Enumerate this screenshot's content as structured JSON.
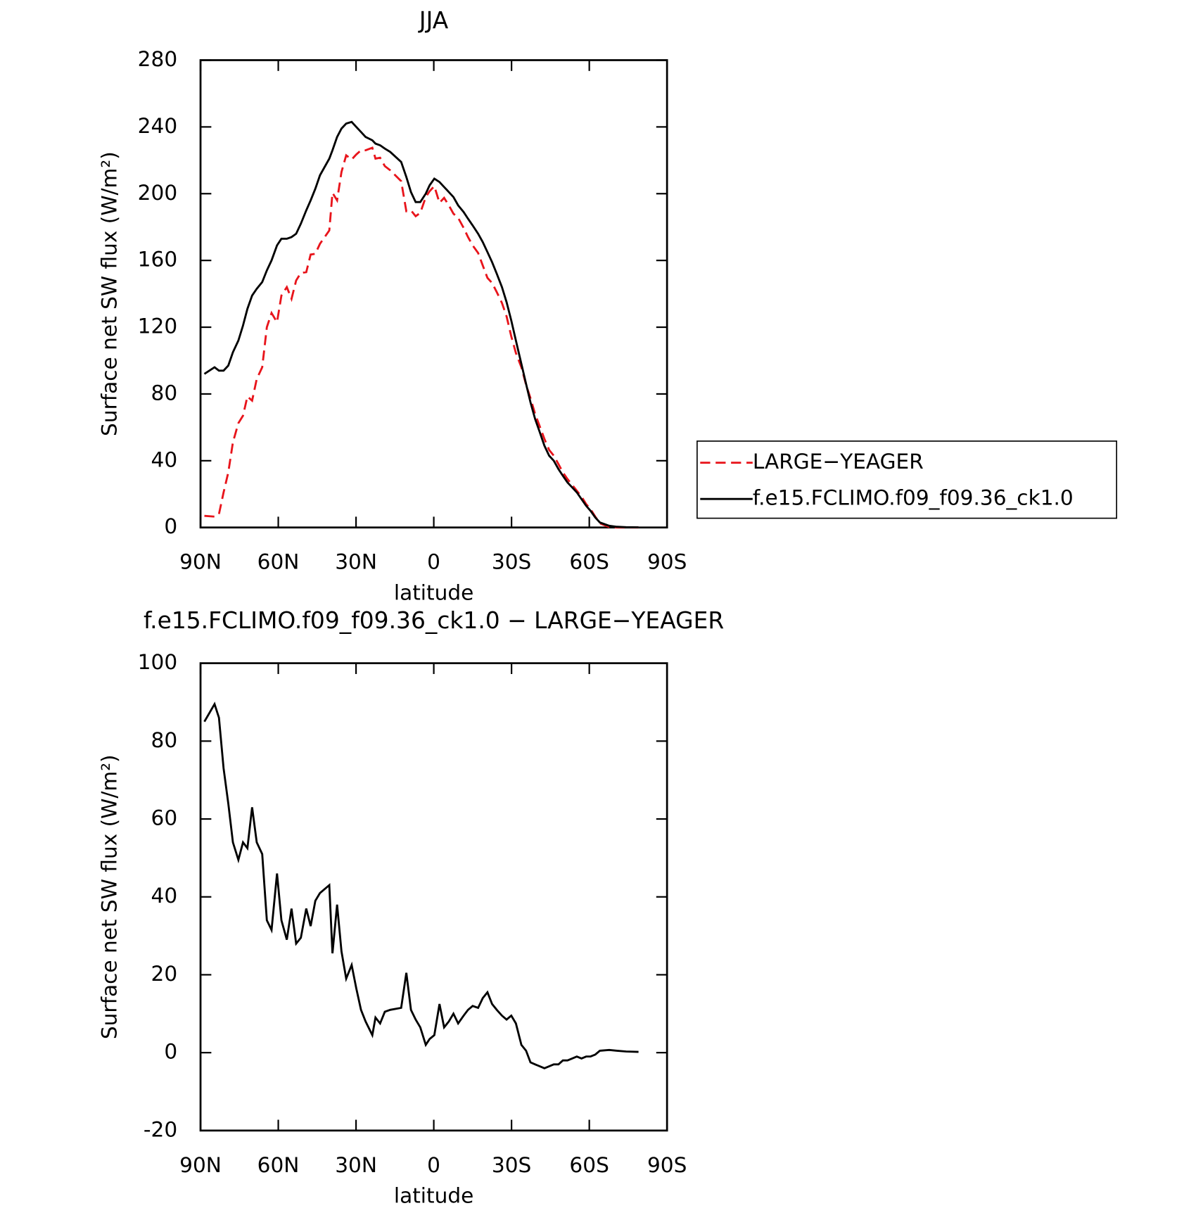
{
  "chart_data": [
    {
      "type": "line",
      "title": "JJA",
      "xlabel": "latitude",
      "ylabel": "Surface net SW flux (W/m²)",
      "x": [
        88.5,
        84.6,
        82.9,
        81.1,
        79.3,
        77.5,
        75.4,
        73.6,
        71.9,
        70.1,
        68.3,
        66.2,
        64.4,
        62.6,
        60.5,
        58.8,
        56.7,
        54.9,
        53.1,
        51.3,
        49.2,
        47.5,
        45.7,
        43.9,
        40.3,
        39.1,
        37.3,
        35.6,
        33.8,
        31.7,
        29.9,
        28.1,
        26.3,
        23.7,
        22.5,
        20.7,
        18.9,
        16.8,
        12.6,
        10.6,
        8.8,
        7.0,
        5.2,
        3.1,
        1.6,
        -0.2,
        -2.2,
        -4.0,
        -5.8,
        -7.6,
        -9.4,
        -11.5,
        -13.2,
        -15.0,
        -17.1,
        -18.9,
        -20.7,
        -22.5,
        -24.3,
        -26.3,
        -28.1,
        -29.9,
        -31.7,
        -33.8,
        -35.6,
        -37.3,
        -39.1,
        -40.9,
        -42.7,
        -44.5,
        -46.3,
        -48.1,
        -49.8,
        -51.6,
        -53.4,
        -55.2,
        -57.0,
        -58.8,
        -60.5,
        -62.3,
        -64.1,
        -67.7,
        -70.7,
        -74.2,
        -79.0
      ],
      "series": [
        {
          "name": "LARGE−YEAGER",
          "color": "#e8141b",
          "dash": true,
          "values": [
            7,
            6.5,
            8,
            21,
            33,
            51,
            62.5,
            67,
            78.5,
            76,
            89,
            96,
            120,
            128.5,
            123,
            139,
            144,
            137,
            148,
            152.5,
            153,
            163.5,
            164,
            170,
            178,
            200.5,
            196,
            213,
            223,
            220.5,
            223.5,
            226,
            226,
            227.5,
            221,
            221.5,
            216.5,
            214,
            207.5,
            189.5,
            190,
            186.5,
            188.5,
            198,
            201.5,
            204.5,
            194.5,
            197.5,
            193,
            188,
            185.5,
            179.5,
            174,
            169,
            164.5,
            157,
            149.5,
            146.5,
            141,
            134.5,
            126.5,
            114.5,
            104.5,
            96,
            85.5,
            77.5,
            68,
            60.5,
            53,
            46.5,
            43,
            38,
            33,
            29,
            25.5,
            22,
            18.5,
            14,
            11,
            6.5,
            2.5,
            0.3,
            0,
            0,
            0
          ]
        },
        {
          "name": "f.e15.FCLIMO.f09_f09.36_ck1.0",
          "color": "#000000",
          "dash": false,
          "values": [
            92,
            96,
            94,
            94,
            97,
            105,
            112,
            121,
            131,
            139,
            143,
            147,
            154,
            160,
            169,
            173,
            173,
            174,
            176,
            182,
            190,
            196,
            203,
            211,
            221,
            226,
            234,
            239,
            242,
            243,
            240,
            237,
            234,
            232,
            230,
            229,
            227,
            225,
            219,
            210,
            201,
            195,
            195,
            200,
            205,
            209,
            207,
            204,
            201,
            198,
            193,
            189,
            185,
            181,
            176,
            171,
            165,
            159,
            152,
            144,
            135,
            124,
            112,
            98,
            86,
            75,
            65,
            57,
            49,
            43,
            40,
            35,
            31,
            27,
            24,
            21,
            17,
            13,
            10,
            6,
            3,
            1,
            0.4,
            0.2,
            0.1
          ]
        }
      ],
      "xlim": [
        90,
        -90
      ],
      "ylim": [
        0,
        280
      ],
      "xticks": [
        {
          "value": 90,
          "label": "90N"
        },
        {
          "value": 60,
          "label": "60N"
        },
        {
          "value": 30,
          "label": "30N"
        },
        0,
        {
          "value": -30,
          "label": "30S"
        },
        {
          "value": -60,
          "label": "60S"
        },
        {
          "value": -90,
          "label": "90S"
        }
      ],
      "yticks": [
        0,
        40,
        80,
        120,
        160,
        200,
        240,
        280
      ],
      "legend": "outside right"
    },
    {
      "type": "line",
      "title": "f.e15.FCLIMO.f09_f09.36_ck1.0 − LARGE−YEAGER",
      "xlabel": "latitude",
      "ylabel": "Surface net SW flux (W/m²)",
      "x": [
        88.5,
        84.6,
        82.9,
        81.1,
        79.3,
        77.5,
        75.4,
        73.6,
        71.9,
        70.1,
        68.3,
        66.2,
        64.4,
        62.6,
        60.5,
        58.8,
        56.7,
        54.9,
        53.1,
        51.3,
        49.2,
        47.5,
        45.7,
        43.9,
        40.3,
        39.1,
        37.3,
        35.6,
        33.8,
        31.7,
        29.9,
        28.1,
        26.3,
        23.7,
        22.5,
        20.7,
        18.9,
        16.8,
        12.6,
        10.6,
        8.8,
        7.0,
        5.2,
        3.1,
        1.6,
        -0.2,
        -2.2,
        -4.0,
        -5.8,
        -7.6,
        -9.4,
        -11.5,
        -13.2,
        -15.0,
        -17.1,
        -18.9,
        -20.7,
        -22.5,
        -24.3,
        -26.3,
        -28.1,
        -29.9,
        -31.7,
        -33.8,
        -35.6,
        -37.3,
        -39.1,
        -40.9,
        -42.7,
        -44.5,
        -46.3,
        -48.1,
        -49.8,
        -51.6,
        -53.4,
        -55.2,
        -57.0,
        -58.8,
        -60.5,
        -62.3,
        -64.1,
        -67.7,
        -70.7,
        -74.2,
        -79.0
      ],
      "series": [
        {
          "color": "#000000",
          "dash": false,
          "values": [
            85,
            89.5,
            86,
            73,
            64,
            54,
            49.5,
            54,
            52.5,
            63,
            54,
            51,
            34,
            31.5,
            46,
            34,
            29,
            37,
            28,
            29.5,
            37,
            32.5,
            39,
            41,
            43,
            25.5,
            38,
            26,
            19,
            22.5,
            16.5,
            11,
            8,
            4.5,
            9,
            7.5,
            10.5,
            11,
            11.5,
            20.5,
            11,
            8.5,
            6.5,
            2,
            3.5,
            4.5,
            12.5,
            6.5,
            8,
            10,
            7.5,
            9.5,
            11,
            12,
            11.5,
            14,
            15.5,
            12.5,
            11,
            9.5,
            8.5,
            9.5,
            7.5,
            2,
            0.5,
            -2.5,
            -3,
            -3.5,
            -4,
            -3.5,
            -3,
            -3,
            -2,
            -2,
            -1.5,
            -1,
            -1.5,
            -1,
            -1,
            -0.5,
            0.5,
            0.7,
            0.5,
            0.3,
            0.2
          ]
        }
      ],
      "xlim": [
        90,
        -90
      ],
      "ylim": [
        -20,
        100
      ],
      "xticks": [
        {
          "value": 90,
          "label": "90N"
        },
        {
          "value": 60,
          "label": "60N"
        },
        {
          "value": 30,
          "label": "30N"
        },
        0,
        {
          "value": -30,
          "label": "30S"
        },
        {
          "value": -60,
          "label": "60S"
        },
        {
          "value": -90,
          "label": "90S"
        }
      ],
      "yticks": [
        -20,
        0,
        20,
        40,
        60,
        80,
        100
      ]
    }
  ]
}
